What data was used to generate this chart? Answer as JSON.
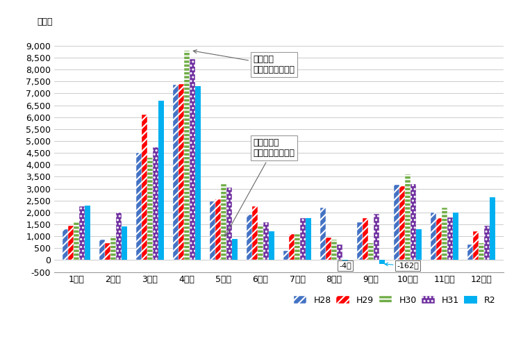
{
  "ylabel": "（人）",
  "months": [
    "1月中",
    "2月中",
    "3月中",
    "4月中",
    "5月中",
    "6月中",
    "7月中",
    "8月中",
    "9月中",
    "10月中",
    "11月中",
    "12月中"
  ],
  "series": {
    "H28": [
      1300,
      850,
      4500,
      7350,
      2450,
      1900,
      400,
      2200,
      1600,
      3150,
      2000,
      650
    ],
    "H29": [
      1450,
      700,
      6100,
      7400,
      2550,
      2250,
      1100,
      950,
      1750,
      3100,
      1750,
      1200
    ],
    "H30": [
      1600,
      1000,
      4300,
      8800,
      3200,
      1450,
      1100,
      850,
      700,
      3600,
      2200,
      700
    ],
    "H31": [
      2250,
      2000,
      4750,
      8450,
      3050,
      1600,
      1750,
      650,
      1950,
      3200,
      1800,
      1450
    ],
    "R2": [
      2300,
      1400,
      6700,
      7300,
      900,
      1200,
      1750,
      -4,
      -162,
      1300,
      2000,
      2650
    ]
  },
  "colors": {
    "H28": "#4472c4",
    "H29": "#ff0000",
    "H30": "#70ad47",
    "H31": "#7030a0",
    "R2": "#00b0f0"
  },
  "hatches": {
    "H28": "///",
    "H29": "///",
    "H30": "---",
    "H31": "...",
    "R2": ""
  },
  "ylim": [
    -500,
    9500
  ],
  "yticks": [
    -500,
    0,
    500,
    1000,
    1500,
    2000,
    2500,
    3000,
    3500,
    4000,
    4500,
    5000,
    5500,
    6000,
    6500,
    7000,
    7500,
    8000,
    8500,
    9000
  ],
  "ann1_text": "４月７日\n紧急事態宣言発出",
  "ann2_text": "５月２５日\n紧急事態宣言解除",
  "label_neg4": "-4人",
  "label_neg162": "-162人",
  "bg_color": "#ffffff"
}
